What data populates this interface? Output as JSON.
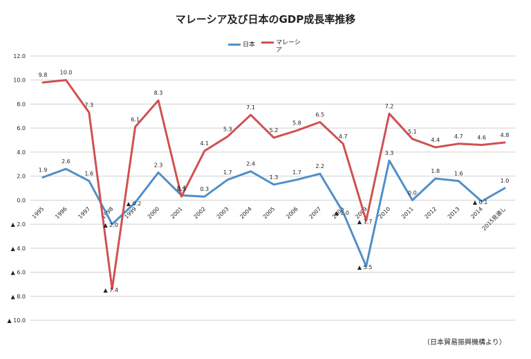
{
  "chart_data": {
    "type": "line",
    "title": "マレーシア及び日本のGDP成長率推移",
    "categories": [
      "1995",
      "1996",
      "1997",
      "1998",
      "1999",
      "2000",
      "2001",
      "2002",
      "2003",
      "2004",
      "2005",
      "2006",
      "2007",
      "2008",
      "2009",
      "2010",
      "2011",
      "2012",
      "2013",
      "2014",
      "2015見通し"
    ],
    "series": [
      {
        "name": "日本",
        "color": "#4f8fc9",
        "values": [
          1.9,
          2.6,
          1.6,
          -2.0,
          -0.2,
          2.3,
          0.4,
          0.3,
          1.7,
          2.4,
          1.3,
          1.7,
          2.2,
          -1.0,
          -5.5,
          3.3,
          0.0,
          1.8,
          1.6,
          -0.1,
          1.0
        ],
        "labels": [
          "1.9",
          "2.6",
          "1.6",
          "▲ 2.0",
          "▲ 0.2",
          "2.3",
          "0.4",
          "0.3",
          "1.7",
          "2.4",
          "1.3",
          "1.7",
          "2.2",
          "▲ 1.0",
          "▲ 5.5",
          "3.3",
          "0.0",
          "1.8",
          "1.6",
          "▲ 0.1",
          "1.0"
        ]
      },
      {
        "name": "マレーシア",
        "color": "#d05050",
        "values": [
          9.8,
          10.0,
          7.3,
          -7.4,
          6.1,
          8.3,
          0.3,
          4.1,
          5.3,
          7.1,
          5.2,
          5.8,
          6.5,
          4.7,
          -1.7,
          7.2,
          5.1,
          4.4,
          4.7,
          4.6,
          4.8
        ],
        "labels": [
          "9.8",
          "10.0",
          "7.3",
          "▲ 7.4",
          "6.1",
          "8.3",
          "0.3",
          "4.1",
          "5.3",
          "7.1",
          "5.2",
          "5.8",
          "6.5",
          "4.7",
          "▲ 1.7",
          "7.2",
          "5.1",
          "4.4",
          "4.7",
          "4.6",
          "4.8"
        ]
      }
    ],
    "ylim": [
      -10,
      12
    ],
    "yticks": [
      12,
      10,
      8,
      6,
      4,
      2,
      0,
      -2,
      -4,
      -6,
      -8,
      -10
    ],
    "ytick_labels": [
      "12.0",
      "10.0",
      "8.0",
      "6.0",
      "4.0",
      "2.0",
      "0.0",
      "▲ 2.0",
      "▲ 4.0",
      "▲ 6.0",
      "▲ 8.0",
      "▲ 10.0"
    ],
    "grid": true,
    "legend": "top-center"
  },
  "source_note": "（日本貿易振興機構より）"
}
